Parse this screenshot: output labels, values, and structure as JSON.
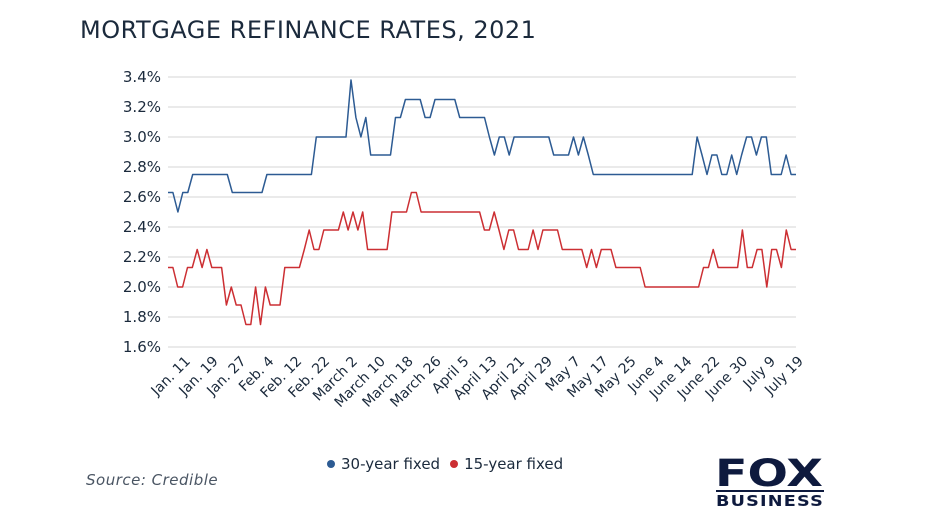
{
  "title": "MORTGAGE REFINANCE RATES, 2021",
  "source": "Source: Credible",
  "logo": {
    "text": "FOX",
    "subtext": "BUSINESS"
  },
  "colors": {
    "series_30": "#2d5b93",
    "series_15": "#cc2f33",
    "grid": "#d4d4d4",
    "text": "#1b2a3c"
  },
  "chart_data": {
    "type": "line",
    "title": "MORTGAGE REFINANCE RATES, 2021",
    "xlabel": "",
    "ylabel": "",
    "ylim": [
      1.6,
      3.4
    ],
    "y_ticks": [
      "3.4%",
      "3.2%",
      "3.0%",
      "2.8%",
      "2.6%",
      "2.4%",
      "2.2%",
      "2.0%",
      "1.8%",
      "1.6%"
    ],
    "y_tick_values": [
      3.4,
      3.2,
      3.0,
      2.8,
      2.6,
      2.4,
      2.2,
      2.0,
      1.8,
      1.6
    ],
    "x_tick_labels": [
      "Jan. 11",
      "Jan. 19",
      "Jan. 27",
      "Feb. 4",
      "Feb. 12",
      "Feb. 22",
      "March 2",
      "March 10",
      "March 18",
      "March 26",
      "April 5",
      "April 13",
      "April 21",
      "April 29",
      "May 7",
      "May 17",
      "May 25",
      "June 4",
      "June 14",
      "June 22",
      "June 30",
      "July 9",
      "July 19"
    ],
    "grid": true,
    "legend_position": "bottom",
    "series": [
      {
        "name": "30-year fixed",
        "color": "#2d5b93",
        "values": [
          2.63,
          2.63,
          2.5,
          2.63,
          2.63,
          2.75,
          2.75,
          2.75,
          2.75,
          2.75,
          2.75,
          2.75,
          2.75,
          2.63,
          2.63,
          2.63,
          2.63,
          2.63,
          2.63,
          2.63,
          2.75,
          2.75,
          2.75,
          2.75,
          2.75,
          2.75,
          2.75,
          2.75,
          2.75,
          2.75,
          3.0,
          3.0,
          3.0,
          3.0,
          3.0,
          3.0,
          3.0,
          3.38,
          3.13,
          3.0,
          3.13,
          2.88,
          2.88,
          2.88,
          2.88,
          2.88,
          3.13,
          3.13,
          3.25,
          3.25,
          3.25,
          3.25,
          3.13,
          3.13,
          3.25,
          3.25,
          3.25,
          3.25,
          3.25,
          3.13,
          3.13,
          3.13,
          3.13,
          3.13,
          3.13,
          3.0,
          2.88,
          3.0,
          3.0,
          2.88,
          3.0,
          3.0,
          3.0,
          3.0,
          3.0,
          3.0,
          3.0,
          3.0,
          2.88,
          2.88,
          2.88,
          2.88,
          3.0,
          2.88,
          3.0,
          2.88,
          2.75,
          2.75,
          2.75,
          2.75,
          2.75,
          2.75,
          2.75,
          2.75,
          2.75,
          2.75,
          2.75,
          2.75,
          2.75,
          2.75,
          2.75,
          2.75,
          2.75,
          2.75,
          2.75,
          2.75,
          2.75,
          3.0,
          2.88,
          2.75,
          2.88,
          2.88,
          2.75,
          2.75,
          2.88,
          2.75,
          2.88,
          3.0,
          3.0,
          2.88,
          3.0,
          3.0,
          2.75,
          2.75,
          2.75,
          2.88,
          2.75,
          2.75
        ],
        "label_every": 6
      },
      {
        "name": "15-year fixed",
        "color": "#cc2f33",
        "values": [
          2.13,
          2.13,
          2.0,
          2.0,
          2.13,
          2.13,
          2.25,
          2.13,
          2.25,
          2.13,
          2.13,
          2.13,
          1.88,
          2.0,
          1.88,
          1.88,
          1.75,
          1.75,
          2.0,
          1.75,
          2.0,
          1.88,
          1.88,
          1.88,
          2.13,
          2.13,
          2.13,
          2.13,
          2.25,
          2.38,
          2.25,
          2.25,
          2.38,
          2.38,
          2.38,
          2.38,
          2.5,
          2.38,
          2.5,
          2.38,
          2.5,
          2.25,
          2.25,
          2.25,
          2.25,
          2.25,
          2.5,
          2.5,
          2.5,
          2.5,
          2.63,
          2.63,
          2.5,
          2.5,
          2.5,
          2.5,
          2.5,
          2.5,
          2.5,
          2.5,
          2.5,
          2.5,
          2.5,
          2.5,
          2.5,
          2.38,
          2.38,
          2.5,
          2.38,
          2.25,
          2.38,
          2.38,
          2.25,
          2.25,
          2.25,
          2.38,
          2.25,
          2.38,
          2.38,
          2.38,
          2.38,
          2.25,
          2.25,
          2.25,
          2.25,
          2.25,
          2.13,
          2.25,
          2.13,
          2.25,
          2.25,
          2.25,
          2.13,
          2.13,
          2.13,
          2.13,
          2.13,
          2.13,
          2.0,
          2.0,
          2.0,
          2.0,
          2.0,
          2.0,
          2.0,
          2.0,
          2.0,
          2.0,
          2.0,
          2.0,
          2.13,
          2.13,
          2.25,
          2.13,
          2.13,
          2.13,
          2.13,
          2.13,
          2.38,
          2.13,
          2.13,
          2.25,
          2.25,
          2.0,
          2.25,
          2.25,
          2.13,
          2.38,
          2.25,
          2.25
        ]
      }
    ]
  }
}
